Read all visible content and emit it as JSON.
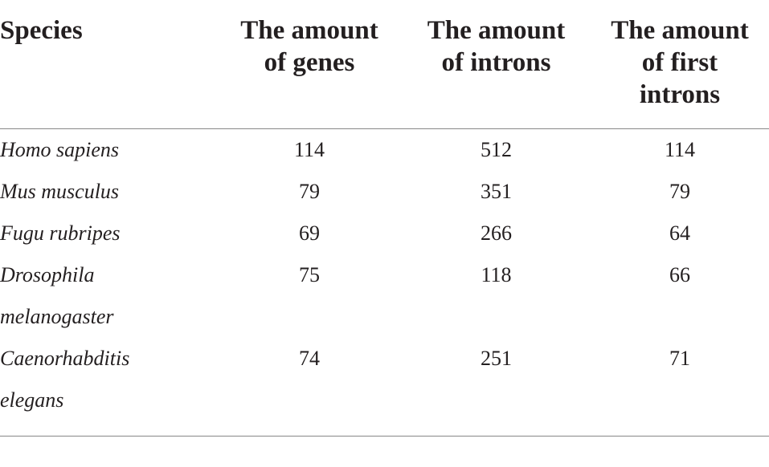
{
  "table": {
    "header": [
      "Species",
      "The amount of genes",
      "The amount of introns",
      "The amount of first introns"
    ],
    "rows": [
      [
        "Homo sapiens",
        114,
        512,
        114
      ],
      [
        "Mus musculus",
        79,
        351,
        79
      ],
      [
        "Fugu rubripes",
        69,
        266,
        64
      ],
      [
        "Drosophila melanogaster",
        75,
        118,
        66
      ],
      [
        "Caenorhabditis elegans",
        74,
        251,
        71
      ]
    ]
  }
}
